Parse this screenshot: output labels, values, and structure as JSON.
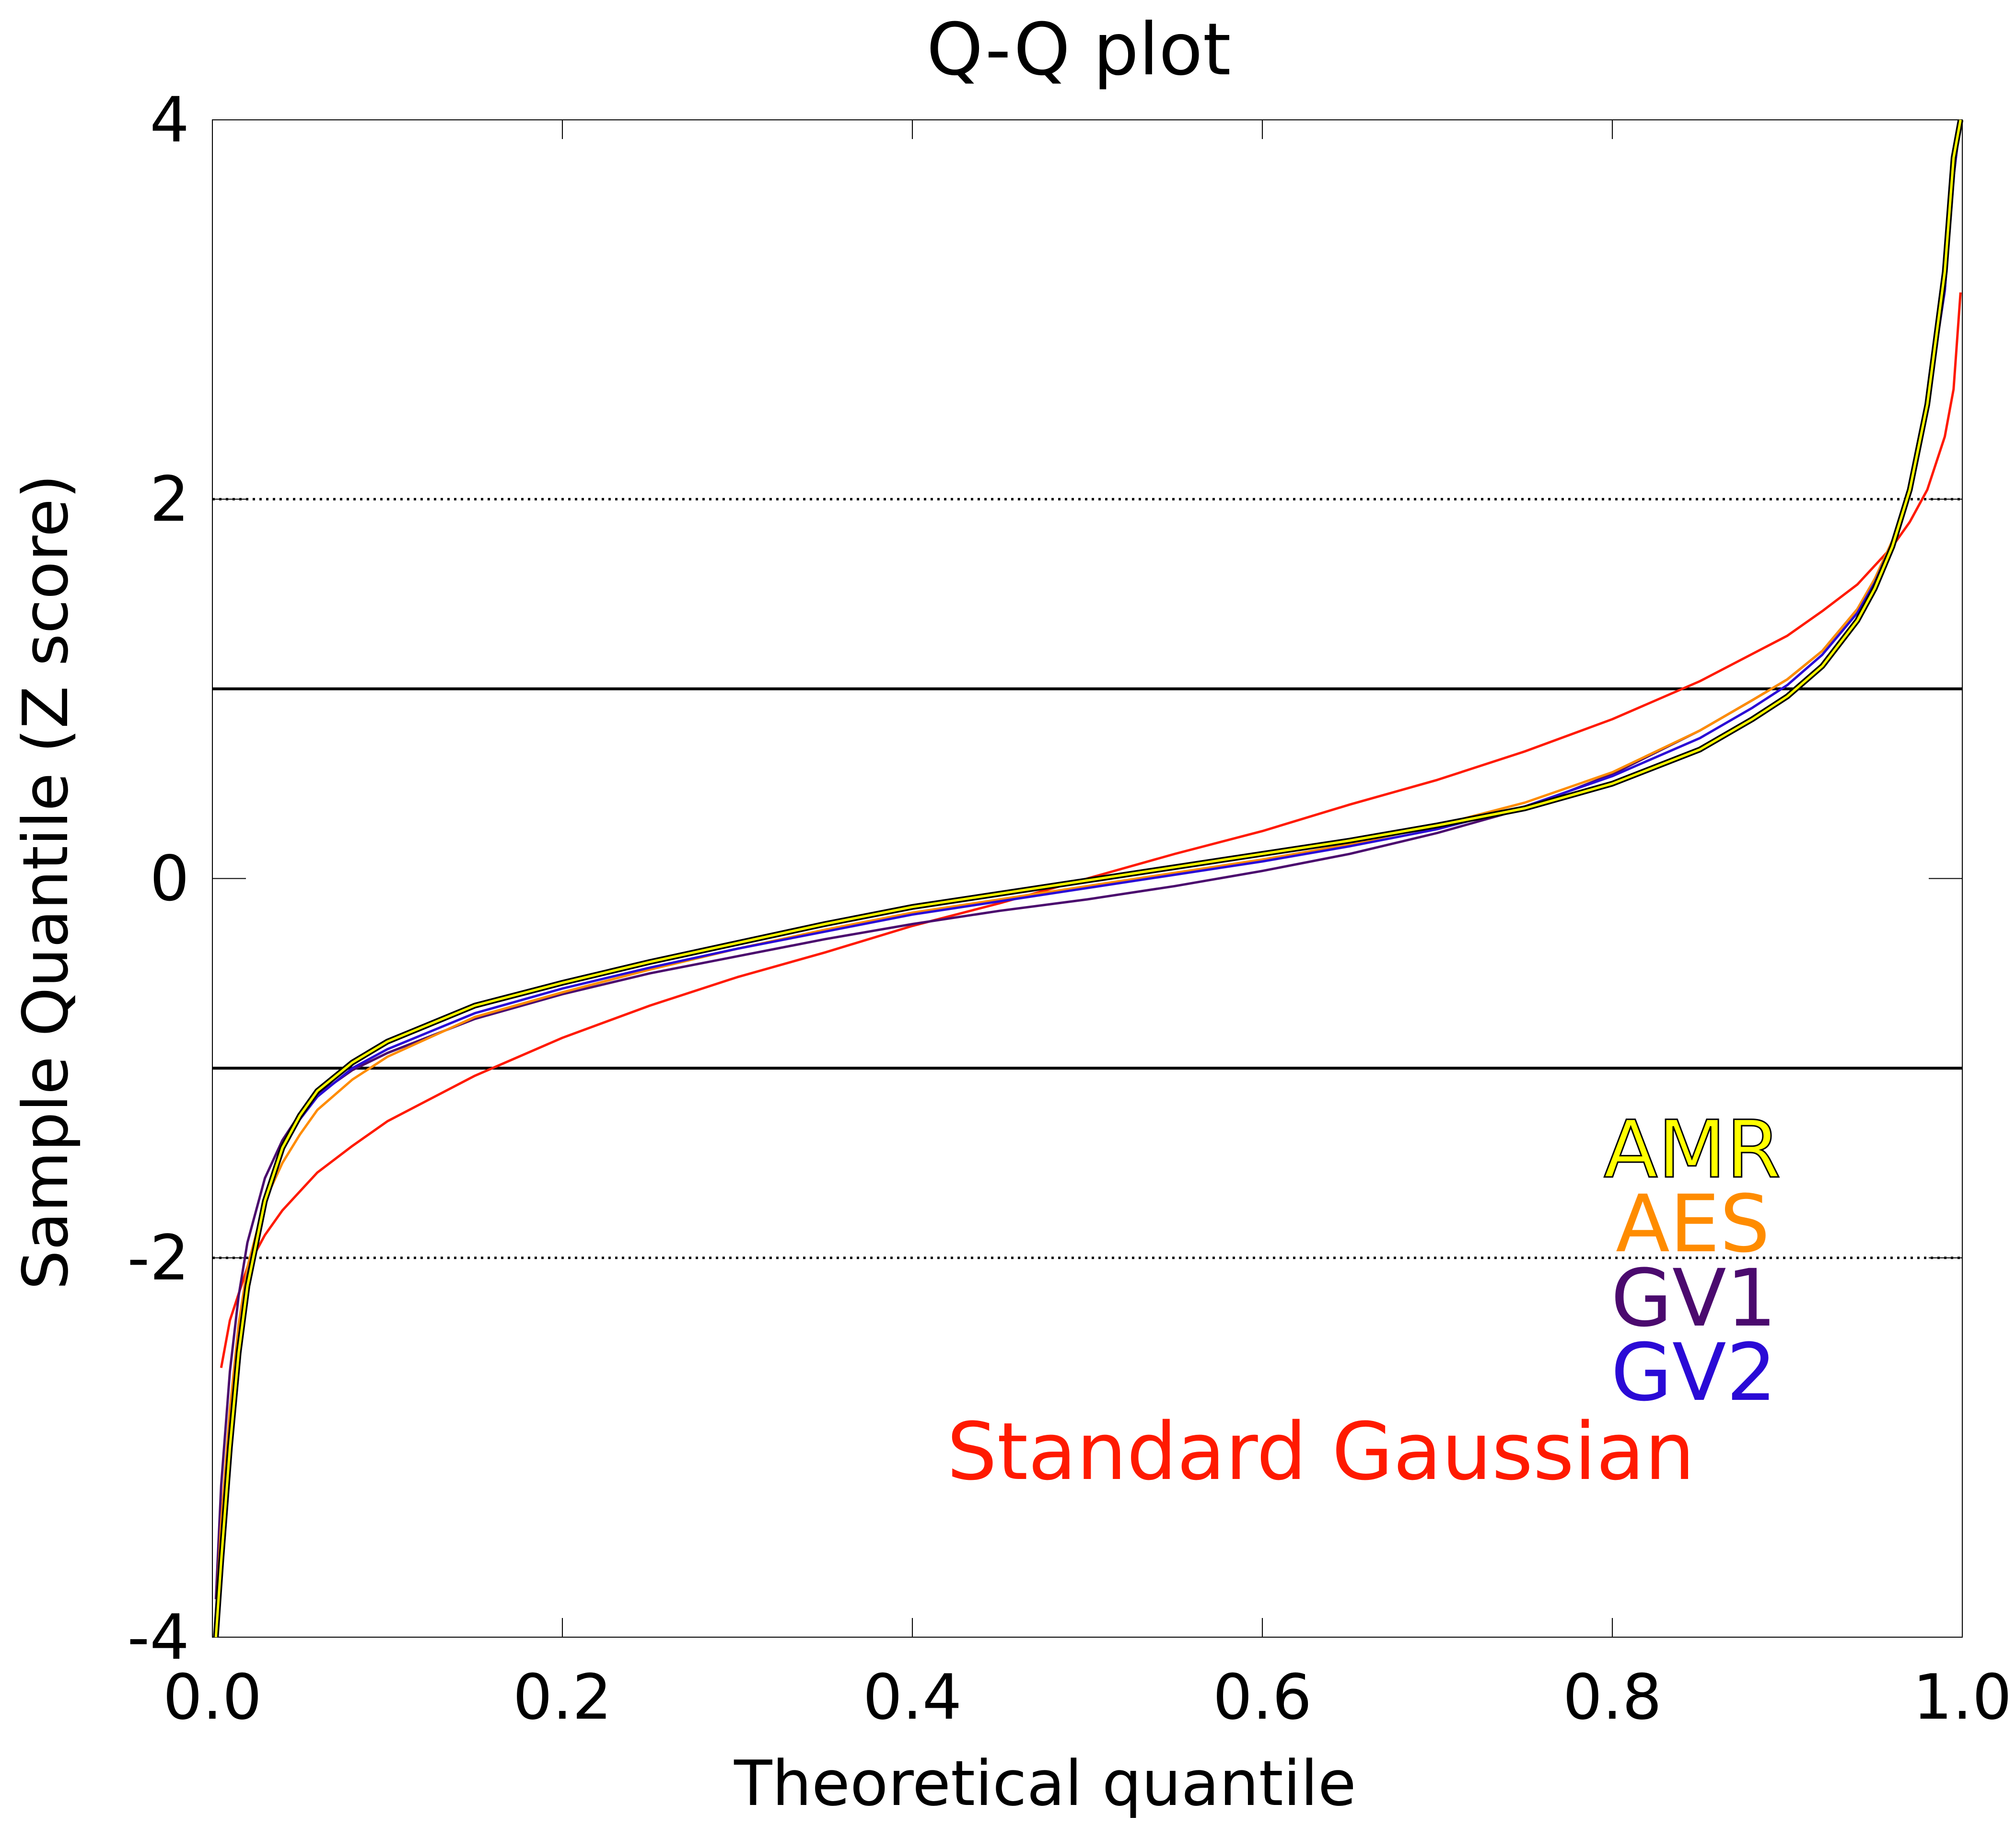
{
  "chart_data": {
    "type": "line",
    "title": "Q-Q plot",
    "xlabel": "Theoretical quantile",
    "ylabel": "Sample Quantile (Z score)",
    "xlim": [
      0.0,
      1.0
    ],
    "ylim": [
      -4,
      4
    ],
    "xticks": [
      "0.0",
      "0.2",
      "0.4",
      "0.6",
      "0.8",
      "1.0"
    ],
    "yticks": [
      "-4",
      "-2",
      "0",
      "2",
      "4"
    ],
    "reference_lines": [
      {
        "y": 2,
        "style": "dotted"
      },
      {
        "y": 1,
        "style": "solid"
      },
      {
        "y": -1,
        "style": "solid"
      },
      {
        "y": -2,
        "style": "dotted"
      }
    ],
    "legend_placement": "bottom-right",
    "series": [
      {
        "name": "AMR",
        "color": "#ffff00",
        "outline": "#000000",
        "x": [
          0.002,
          0.005,
          0.01,
          0.015,
          0.02,
          0.03,
          0.04,
          0.05,
          0.06,
          0.08,
          0.1,
          0.15,
          0.2,
          0.25,
          0.3,
          0.35,
          0.4,
          0.45,
          0.5,
          0.55,
          0.6,
          0.65,
          0.7,
          0.75,
          0.8,
          0.85,
          0.88,
          0.9,
          0.92,
          0.94,
          0.95,
          0.96,
          0.97,
          0.98,
          0.99,
          0.995,
          0.999
        ],
        "y": [
          -4.1,
          -3.6,
          -3.0,
          -2.5,
          -2.15,
          -1.7,
          -1.42,
          -1.25,
          -1.12,
          -0.97,
          -0.86,
          -0.67,
          -0.55,
          -0.44,
          -0.34,
          -0.24,
          -0.15,
          -0.08,
          -0.01,
          0.06,
          0.13,
          0.2,
          0.28,
          0.37,
          0.5,
          0.68,
          0.84,
          0.96,
          1.12,
          1.36,
          1.53,
          1.75,
          2.05,
          2.5,
          3.2,
          3.8,
          4.0
        ]
      },
      {
        "name": "AES",
        "color": "#ff8c00",
        "x": [
          0.002,
          0.005,
          0.01,
          0.015,
          0.02,
          0.03,
          0.04,
          0.05,
          0.06,
          0.08,
          0.1,
          0.15,
          0.2,
          0.25,
          0.3,
          0.35,
          0.4,
          0.45,
          0.5,
          0.55,
          0.6,
          0.65,
          0.7,
          0.75,
          0.8,
          0.85,
          0.88,
          0.9,
          0.92,
          0.94,
          0.95,
          0.96,
          0.97,
          0.98,
          0.99,
          0.995,
          0.999
        ],
        "y": [
          -3.9,
          -3.4,
          -2.8,
          -2.35,
          -2.05,
          -1.7,
          -1.5,
          -1.35,
          -1.22,
          -1.06,
          -0.94,
          -0.73,
          -0.6,
          -0.48,
          -0.37,
          -0.27,
          -0.18,
          -0.11,
          -0.04,
          0.03,
          0.1,
          0.18,
          0.28,
          0.4,
          0.56,
          0.78,
          0.94,
          1.05,
          1.2,
          1.42,
          1.58,
          1.78,
          2.07,
          2.5,
          3.1,
          3.7,
          4.0
        ]
      },
      {
        "name": "GV1",
        "color": "#4b0a6e",
        "x": [
          0.002,
          0.005,
          0.01,
          0.015,
          0.02,
          0.03,
          0.04,
          0.05,
          0.06,
          0.08,
          0.1,
          0.15,
          0.2,
          0.25,
          0.3,
          0.35,
          0.4,
          0.45,
          0.5,
          0.55,
          0.6,
          0.65,
          0.7,
          0.75,
          0.8,
          0.85,
          0.88,
          0.9,
          0.92,
          0.94,
          0.95,
          0.96,
          0.97,
          0.98,
          0.99,
          0.995,
          0.999
        ],
        "y": [
          -3.8,
          -3.2,
          -2.6,
          -2.2,
          -1.92,
          -1.58,
          -1.38,
          -1.24,
          -1.14,
          -1.01,
          -0.92,
          -0.74,
          -0.61,
          -0.5,
          -0.41,
          -0.32,
          -0.24,
          -0.17,
          -0.11,
          -0.04,
          0.04,
          0.13,
          0.24,
          0.37,
          0.55,
          0.78,
          0.94,
          1.05,
          1.2,
          1.42,
          1.58,
          1.78,
          2.07,
          2.5,
          3.1,
          3.7,
          4.0
        ]
      },
      {
        "name": "GV2",
        "color": "#2a0ad6",
        "x": [
          0.002,
          0.005,
          0.01,
          0.015,
          0.02,
          0.03,
          0.04,
          0.05,
          0.06,
          0.08,
          0.1,
          0.15,
          0.2,
          0.25,
          0.3,
          0.35,
          0.4,
          0.45,
          0.5,
          0.55,
          0.6,
          0.65,
          0.7,
          0.75,
          0.8,
          0.85,
          0.88,
          0.9,
          0.92,
          0.94,
          0.95,
          0.96,
          0.97,
          0.98,
          0.99,
          0.995,
          0.999
        ],
        "y": [
          -4.0,
          -3.5,
          -2.9,
          -2.45,
          -2.1,
          -1.68,
          -1.43,
          -1.27,
          -1.15,
          -1.0,
          -0.9,
          -0.71,
          -0.58,
          -0.47,
          -0.37,
          -0.28,
          -0.19,
          -0.12,
          -0.05,
          0.02,
          0.09,
          0.17,
          0.26,
          0.38,
          0.54,
          0.74,
          0.9,
          1.02,
          1.18,
          1.4,
          1.56,
          1.77,
          2.06,
          2.5,
          3.1,
          3.7,
          4.0
        ]
      },
      {
        "name": "Standard Gaussian",
        "color": "#ff1a00",
        "x": [
          0.005,
          0.01,
          0.02,
          0.03,
          0.04,
          0.06,
          0.08,
          0.1,
          0.15,
          0.2,
          0.25,
          0.3,
          0.35,
          0.4,
          0.45,
          0.5,
          0.55,
          0.6,
          0.65,
          0.7,
          0.75,
          0.8,
          0.85,
          0.9,
          0.92,
          0.94,
          0.96,
          0.97,
          0.98,
          0.99,
          0.995,
          0.999
        ],
        "y": [
          -2.58,
          -2.33,
          -2.05,
          -1.88,
          -1.75,
          -1.55,
          -1.41,
          -1.28,
          -1.04,
          -0.84,
          -0.67,
          -0.52,
          -0.39,
          -0.25,
          -0.13,
          0.0,
          0.13,
          0.25,
          0.39,
          0.52,
          0.67,
          0.84,
          1.04,
          1.28,
          1.41,
          1.55,
          1.75,
          1.88,
          2.05,
          2.33,
          2.58,
          3.09
        ]
      }
    ]
  }
}
